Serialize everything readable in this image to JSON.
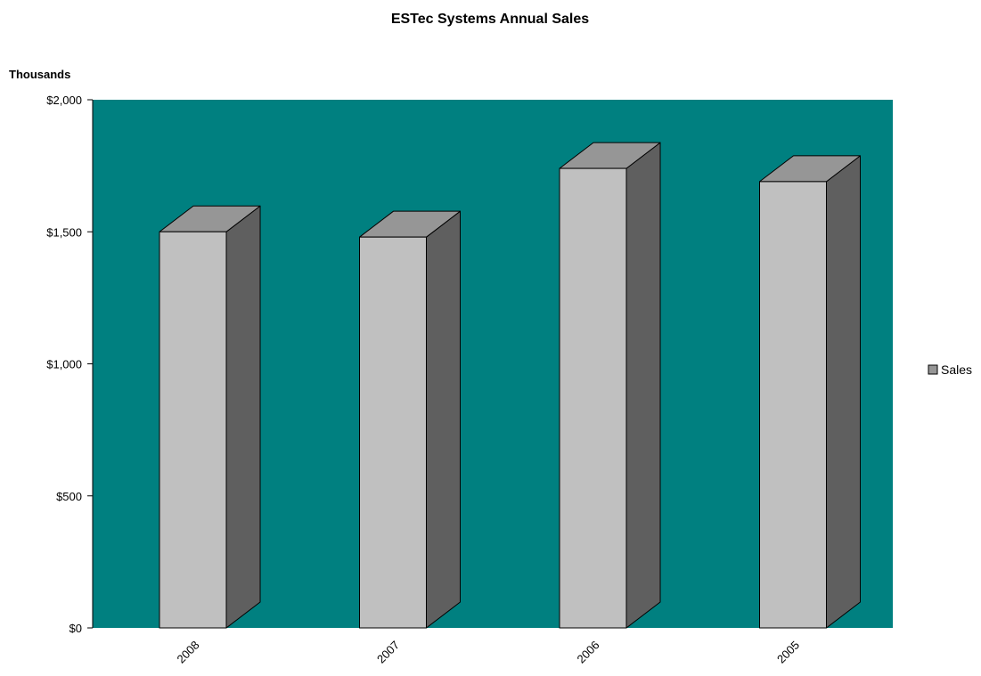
{
  "chart_data": {
    "type": "bar",
    "title": "ESTec Systems Annual Sales",
    "display_units": "Thousands",
    "categories": [
      "2008",
      "2007",
      "2006",
      "2005"
    ],
    "series": [
      {
        "name": "Sales",
        "values": [
          1500,
          1480,
          1740,
          1690
        ]
      }
    ],
    "ylim": [
      0,
      2000
    ],
    "y_ticks": [
      0,
      500,
      1000,
      1500,
      2000
    ],
    "y_tick_labels": [
      "$0",
      "$500",
      "$1,000",
      "$1,500",
      "$2,000"
    ],
    "xlabel": "",
    "ylabel": "",
    "legend_position": "right",
    "style": "3d-column",
    "colors": {
      "plot_background": "#008080",
      "bar_front": "#c0c0c0",
      "bar_top": "#969696",
      "bar_side": "#5f5f5f",
      "legend_swatch": "#969696"
    }
  }
}
